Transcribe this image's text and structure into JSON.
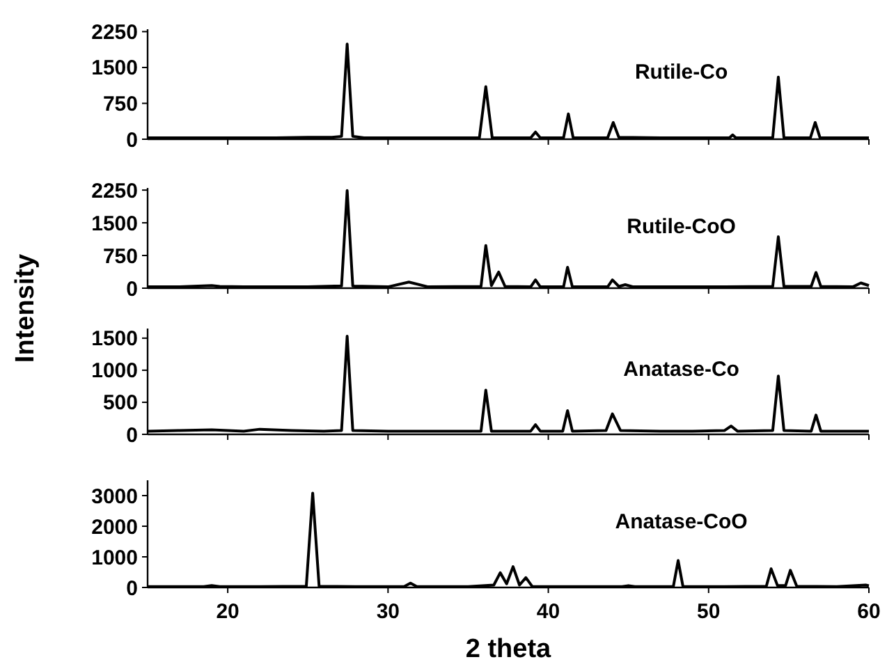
{
  "chart_data": [
    {
      "type": "line",
      "ylabel": "Intensity",
      "xlim": [
        15,
        60
      ],
      "xticks": [
        20,
        30,
        40,
        50,
        60
      ],
      "ylim": [
        0,
        2300
      ],
      "yticks": [
        0,
        750,
        1500,
        2250
      ],
      "tick_labels": "y",
      "grid": false,
      "series": [
        {
          "name": "Rutile-Co",
          "color": "#000000",
          "x": [
            15,
            17,
            19,
            21,
            23,
            25,
            26.5,
            27.1,
            27.45,
            27.8,
            28.5,
            31,
            33,
            35.7,
            36.1,
            36.5,
            38.9,
            39.2,
            39.5,
            40.95,
            41.25,
            41.55,
            43.7,
            44.05,
            44.4,
            47,
            49,
            51.3,
            51.5,
            51.7,
            54.0,
            54.35,
            54.7,
            56.35,
            56.65,
            56.95,
            58,
            60
          ],
          "values": [
            30,
            30,
            30,
            30,
            30,
            40,
            40,
            60,
            1990,
            60,
            30,
            30,
            30,
            30,
            1100,
            30,
            30,
            150,
            30,
            30,
            530,
            30,
            30,
            350,
            40,
            30,
            30,
            30,
            90,
            30,
            30,
            1300,
            30,
            30,
            350,
            30,
            30,
            30
          ]
        }
      ]
    },
    {
      "type": "line",
      "xlim": [
        15,
        60
      ],
      "xticks": [
        20,
        30,
        40,
        50,
        60
      ],
      "ylim": [
        0,
        2300
      ],
      "yticks": [
        0,
        750,
        1500,
        2250
      ],
      "tick_labels": "y",
      "grid": false,
      "series": [
        {
          "name": "Rutile-CoO",
          "color": "#000000",
          "x": [
            15,
            17,
            19,
            19.5,
            21,
            23,
            25,
            27.1,
            27.45,
            27.8,
            30,
            31.3,
            32.5,
            35.8,
            36.1,
            36.45,
            36.9,
            37.3,
            38.9,
            39.2,
            39.5,
            40.95,
            41.2,
            41.5,
            43.7,
            44.0,
            44.4,
            44.8,
            45.3,
            48,
            51,
            54.0,
            54.35,
            54.7,
            56.4,
            56.7,
            57,
            59,
            59.5,
            60
          ],
          "values": [
            30,
            30,
            60,
            40,
            30,
            30,
            30,
            50,
            2240,
            50,
            30,
            140,
            30,
            40,
            980,
            60,
            370,
            40,
            30,
            190,
            30,
            30,
            480,
            30,
            30,
            190,
            40,
            80,
            30,
            30,
            30,
            40,
            1180,
            40,
            40,
            360,
            40,
            30,
            120,
            60
          ]
        }
      ]
    },
    {
      "type": "line",
      "xlim": [
        15,
        60
      ],
      "xticks": [
        20,
        30,
        40,
        50,
        60
      ],
      "ylim": [
        0,
        1650
      ],
      "yticks": [
        0,
        500,
        1000,
        1500
      ],
      "tick_labels": "y",
      "grid": false,
      "series": [
        {
          "name": "Anatase-Co",
          "color": "#000000",
          "x": [
            15,
            17,
            19,
            21,
            22,
            24,
            26,
            27.1,
            27.45,
            27.8,
            30,
            33,
            35.8,
            36.1,
            36.45,
            38.9,
            39.2,
            39.5,
            40.9,
            41.2,
            41.5,
            43.6,
            44.0,
            44.5,
            47,
            49,
            51,
            51.4,
            51.8,
            54.0,
            54.35,
            54.7,
            56.4,
            56.7,
            57,
            58,
            60
          ],
          "values": [
            50,
            60,
            70,
            50,
            80,
            60,
            50,
            60,
            1530,
            60,
            50,
            50,
            50,
            690,
            50,
            50,
            150,
            50,
            50,
            370,
            50,
            60,
            320,
            60,
            50,
            50,
            60,
            130,
            50,
            60,
            910,
            60,
            50,
            300,
            50,
            50,
            50
          ]
        }
      ]
    },
    {
      "type": "line",
      "xlabel": "2 theta",
      "xlim": [
        15,
        60
      ],
      "xticks": [
        20,
        30,
        40,
        50,
        60
      ],
      "ylim": [
        0,
        3500
      ],
      "yticks": [
        0,
        1000,
        2000,
        3000
      ],
      "grid": false,
      "series": [
        {
          "name": "Anatase-CoO",
          "color": "#000000",
          "x": [
            15,
            18.5,
            19,
            19.5,
            22,
            24.9,
            25.3,
            25.7,
            28,
            31.0,
            31.4,
            31.8,
            35,
            36.6,
            37.0,
            37.4,
            37.8,
            38.2,
            38.6,
            39,
            42,
            44.6,
            45,
            45.4,
            47.8,
            48.1,
            48.4,
            51,
            53.6,
            53.9,
            54.3,
            54.8,
            55.1,
            55.5,
            58,
            59.8,
            60
          ],
          "values": [
            30,
            30,
            60,
            30,
            30,
            40,
            3080,
            40,
            30,
            30,
            140,
            30,
            30,
            80,
            480,
            120,
            680,
            80,
            320,
            30,
            30,
            30,
            60,
            30,
            30,
            880,
            30,
            30,
            40,
            610,
            60,
            60,
            560,
            40,
            30,
            80,
            60
          ]
        }
      ]
    }
  ]
}
